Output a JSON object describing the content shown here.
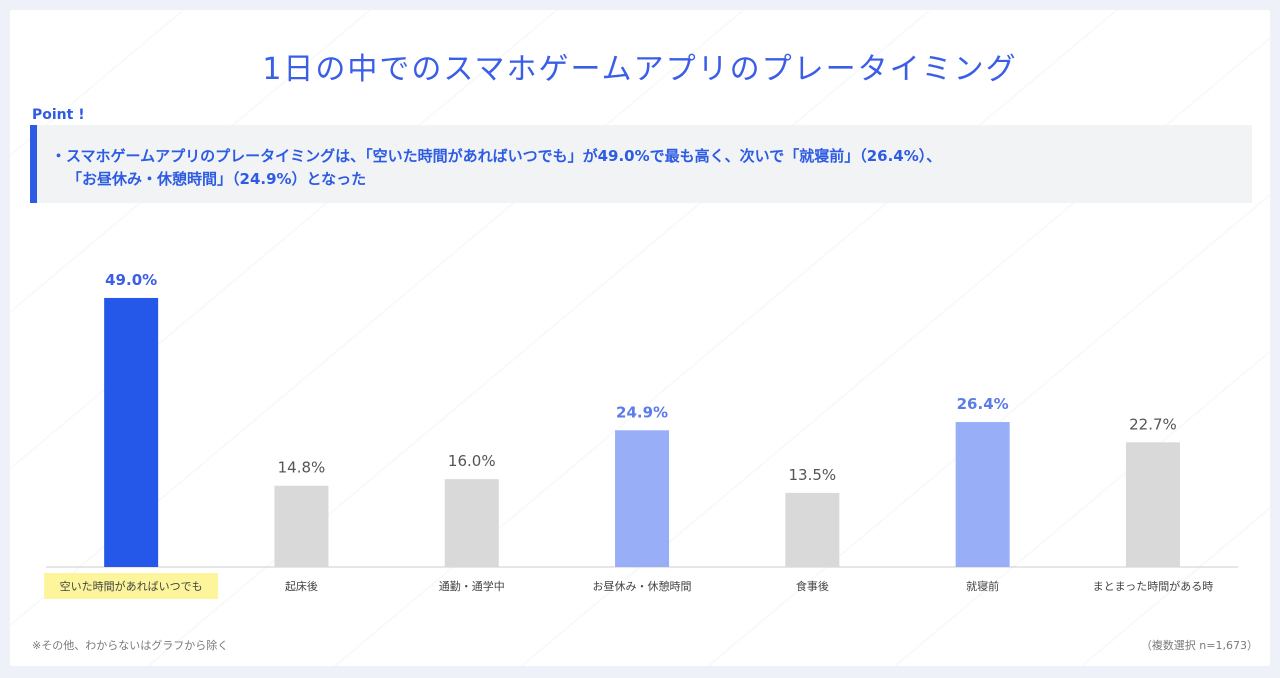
{
  "title": "1日の中でのスマホゲームアプリのプレータイミング",
  "point": {
    "label": "Point !",
    "line1": "・スマホゲームアプリのプレータイミングは、「空いた時間があればいつでも」が49.0%で最も高く、次いで「就寝前」（26.4%）、",
    "line2": "「お昼休み・休憩時間」（24.9%）となった"
  },
  "chart_data": {
    "type": "bar",
    "categories": [
      "空いた時間があればいつでも",
      "起床後",
      "通勤・通学中",
      "お昼休み・休憩時間",
      "食事後",
      "就寝前",
      "まとまった時間がある時"
    ],
    "values": [
      49.0,
      14.8,
      16.0,
      24.9,
      13.5,
      26.4,
      22.7
    ],
    "value_labels": [
      "49.0%",
      "14.8%",
      "16.0%",
      "24.9%",
      "13.5%",
      "26.4%",
      "22.7%"
    ],
    "bar_colors": [
      "#2557e8",
      "#d9d9d9",
      "#d9d9d9",
      "#98aef7",
      "#d9d9d9",
      "#98aef7",
      "#d9d9d9"
    ],
    "label_colors": [
      "#3a5ee8",
      "#555555",
      "#555555",
      "#5b7be8",
      "#555555",
      "#5b7be8",
      "#555555"
    ],
    "highlight_category_bg": "#fcf59b",
    "ylim": [
      0,
      55
    ],
    "grid": false
  },
  "footnote_left": "※その他、わからないはグラフから除く",
  "footnote_right": "（複数選択 n=1,673）"
}
